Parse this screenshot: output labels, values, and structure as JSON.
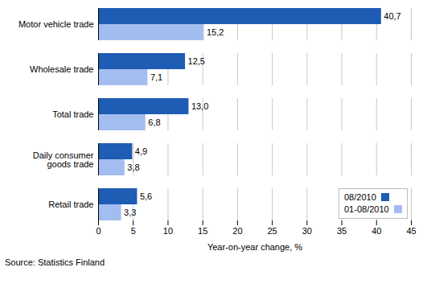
{
  "chart_data": {
    "type": "bar",
    "orientation": "horizontal",
    "categories": [
      "Motor vehicle trade",
      "Wholesale trade",
      "Total trade",
      "Daily consumer goods trade",
      "Retail trade"
    ],
    "series": [
      {
        "name": "08/2010",
        "color": "#1f5cb4",
        "values": [
          40.7,
          12.5,
          13.0,
          4.9,
          5.6
        ],
        "value_labels": [
          "40,7",
          "12,5",
          "13,0",
          "4,9",
          "5,6"
        ]
      },
      {
        "name": "01-08/2010",
        "color": "#a4bdf0",
        "values": [
          15.2,
          7.1,
          6.8,
          3.8,
          3.3
        ],
        "value_labels": [
          "15,2",
          "7,1",
          "6,8",
          "3,8",
          "3,3"
        ]
      }
    ],
    "xlim": [
      0,
      45
    ],
    "xticks": [
      0,
      5,
      10,
      15,
      20,
      25,
      30,
      35,
      40,
      45
    ],
    "x_label": "Year-on-year change, %",
    "caption": "Source: Statistics Finland",
    "grid": true,
    "data_labels": true,
    "legend": "lower right"
  }
}
